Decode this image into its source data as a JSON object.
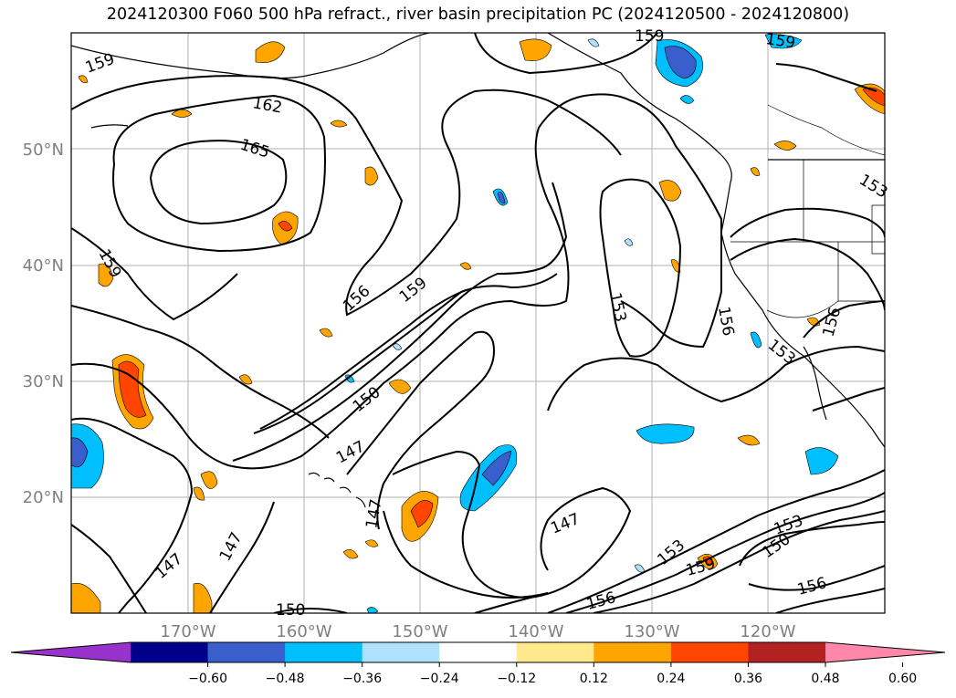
{
  "title": "2024120300 F060 500 hPa refract., river basin precipitation PC (2024120500 - 2024120800)",
  "lat_labels": [
    "50°N",
    "40°N",
    "30°N",
    "20°N"
  ],
  "lon_labels": [
    "170°W",
    "160°W",
    "150°W",
    "140°W",
    "130°W",
    "120°W"
  ],
  "contour_labels": [
    "159",
    "162",
    "165",
    "159",
    "159",
    "159",
    "156",
    "159",
    "153",
    "156",
    "153",
    "153",
    "156",
    "150",
    "147",
    "147",
    "147",
    "147",
    "147",
    "150",
    "153",
    "159",
    "150",
    "153",
    "156",
    "156"
  ],
  "colorbar": {
    "ticks": [
      "−0.60",
      "−0.48",
      "−0.36",
      "−0.24",
      "−0.12",
      "0.12",
      "0.24",
      "0.36",
      "0.48",
      "0.60"
    ],
    "colors": [
      "#9932cc",
      "#00008b",
      "#3a5fcd",
      "#00bfff",
      "#afe1fa",
      "#ffffff",
      "#ffe98c",
      "#ffa500",
      "#ff4500",
      "#b22222",
      "#ff88aa"
    ]
  }
}
